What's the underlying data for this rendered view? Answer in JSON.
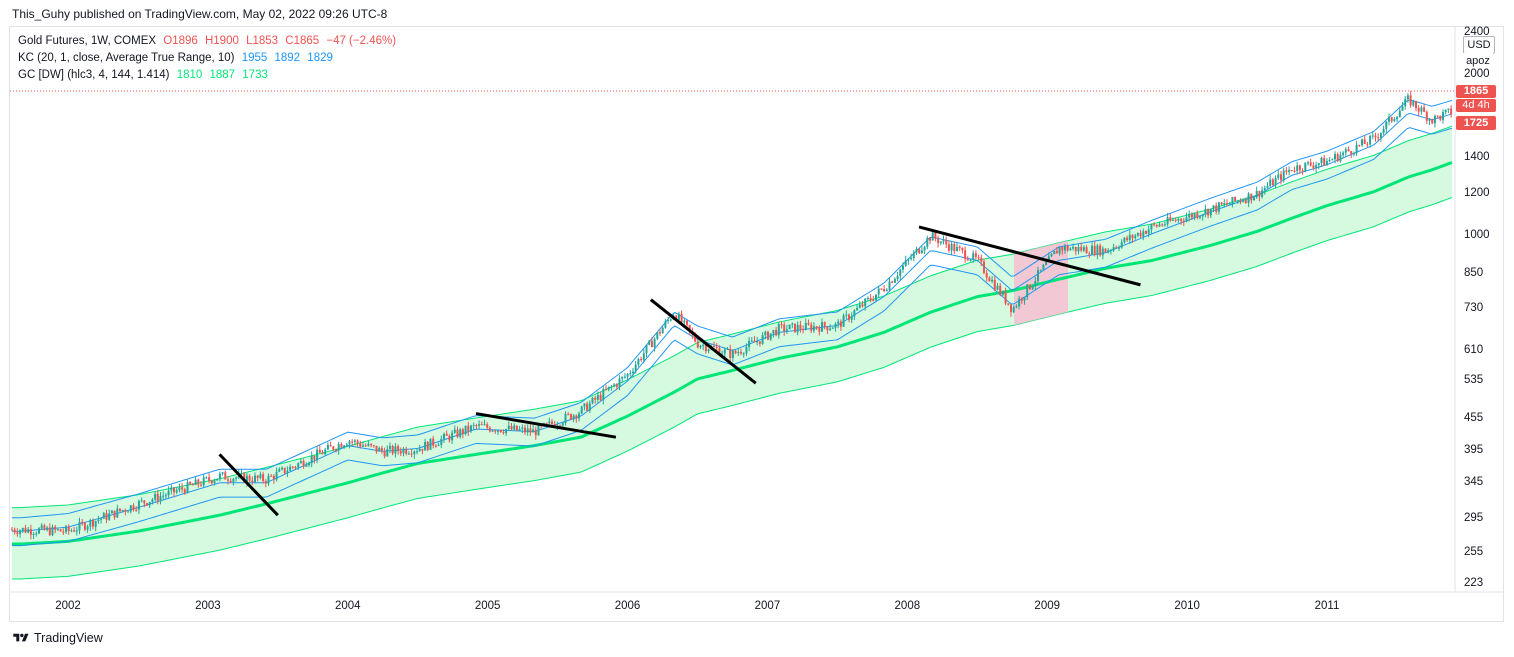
{
  "publisher": "This_Guhy published on TradingView.com, May 02, 2022 09:26 UTC-8",
  "legend": {
    "line1": {
      "label": "Gold Futures, 1W, COMEX",
      "o": "O1896",
      "h": "H1900",
      "l": "L1853",
      "c": "C1865",
      "chg": "−47 (−2.46%)"
    },
    "line2": {
      "label": "KC (20, 1, close, Average True Range, 10)",
      "v1": "1955",
      "v2": "1892",
      "v3": "1829"
    },
    "line3": {
      "label": "GC [DW] (hlc3, 4, 144, 1.414)",
      "v1": "1810",
      "v2": "1887",
      "v3": "1733"
    }
  },
  "buttons": {
    "currency": "USD",
    "scale": "apoz"
  },
  "price_tags": {
    "last": "1865",
    "countdown": "4d 4h",
    "low": "1725"
  },
  "footer": {
    "brand": "TradingView"
  },
  "colors": {
    "up": "#26a69a",
    "down": "#ef5350",
    "kc": "#2196f3",
    "gc": "#00e676",
    "gc_fill": "#b9f6ca",
    "gc_fill_bear": "#f8bbd0",
    "trendline": "#000000"
  },
  "chart_data": {
    "type": "line",
    "title": "",
    "xlabel": "",
    "ylabel": "",
    "y_scale": "log",
    "ylim": [
      200,
      2500
    ],
    "x_ticks": [
      "2002",
      "2003",
      "2004",
      "2005",
      "2006",
      "2007",
      "2008",
      "2009",
      "2010",
      "2011"
    ],
    "y_ticks": [
      "2400",
      "2000",
      "1400",
      "1200",
      "1000",
      "850",
      "730",
      "610",
      "535",
      "455",
      "395",
      "345",
      "295",
      "255",
      "223"
    ],
    "x": [
      "2001-09",
      "2002-01",
      "2002-07",
      "2003-02",
      "2003-06",
      "2004-01",
      "2004-04",
      "2004-07",
      "2004-12",
      "2005-05",
      "2005-09",
      "2006-01",
      "2006-05",
      "2006-07",
      "2006-10",
      "2007-02",
      "2007-07",
      "2007-11",
      "2008-03",
      "2008-07",
      "2008-10",
      "2009-02",
      "2009-06",
      "2009-10",
      "2010-03",
      "2010-07",
      "2010-10",
      "2011-01",
      "2011-05",
      "2011-08",
      "2011-10",
      "2011-12"
    ],
    "series": [
      {
        "name": "Gold Futures",
        "values": [
          282,
          280,
          315,
          355,
          350,
          415,
          395,
          400,
          440,
          430,
          470,
          550,
          720,
          630,
          600,
          670,
          680,
          800,
          1000,
          900,
          730,
          950,
          940,
          1040,
          1120,
          1200,
          1340,
          1380,
          1520,
          1800,
          1650,
          1720
        ]
      },
      {
        "name": "KC",
        "values": [
          280,
          285,
          310,
          345,
          345,
          405,
          395,
          400,
          435,
          430,
          460,
          535,
          680,
          640,
          610,
          660,
          680,
          770,
          940,
          900,
          790,
          900,
          930,
          1010,
          1110,
          1190,
          1300,
          1360,
          1480,
          1700,
          1650,
          1700
        ]
      },
      {
        "name": "GC",
        "values": [
          265,
          268,
          280,
          300,
          315,
          345,
          360,
          375,
          390,
          405,
          420,
          460,
          510,
          540,
          560,
          590,
          620,
          660,
          720,
          770,
          790,
          830,
          870,
          900,
          960,
          1020,
          1080,
          1140,
          1210,
          1290,
          1330,
          1380
        ]
      }
    ],
    "annotations": [
      "trendline",
      "trendline",
      "trendline",
      "trendline"
    ]
  }
}
